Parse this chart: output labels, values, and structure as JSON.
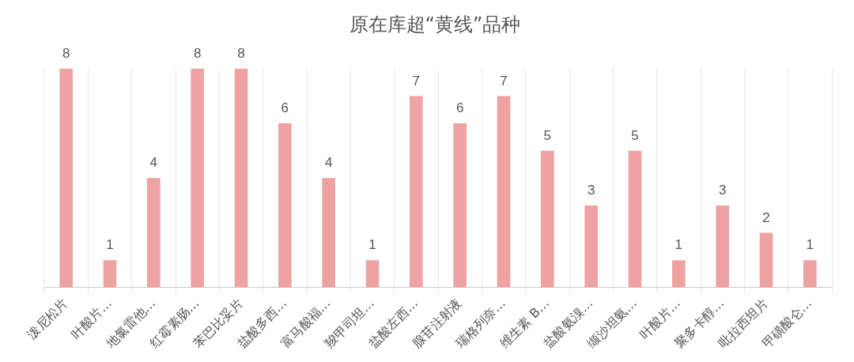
{
  "chart_data": {
    "type": "bar",
    "title": "原在库超“黄线”品种",
    "categories": [
      "泼尼松片",
      "叶酸片…",
      "地氯雷他…",
      "红霉素肠…",
      "苯巴比妥片",
      "盐酸多西…",
      "富马酸福…",
      "羧甲司坦…",
      "盐酸左西…",
      "腺苷注射液",
      "瑞格列奈…",
      "维生素 B…",
      "盐酸氨溴…",
      "缬沙坦氨…",
      "叶酸片…",
      "聚多卡醇…",
      "吡拉西坦片",
      "甲磺酸仑…"
    ],
    "values": [
      8,
      1,
      4,
      8,
      8,
      6,
      4,
      1,
      7,
      6,
      7,
      5,
      3,
      5,
      1,
      3,
      2,
      1
    ],
    "color": "#eea2a2",
    "data_labels": true,
    "grid": "x",
    "legend": false
  }
}
